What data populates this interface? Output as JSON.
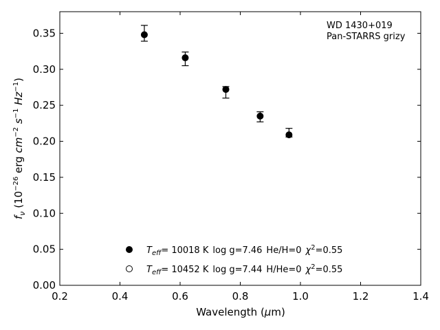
{
  "chart_data": {
    "type": "scatter",
    "title": "",
    "xlabel": "Wavelength (μm)",
    "ylabel": "f_ν (10^-26 erg cm^-2 s^-1 Hz^-1)",
    "xlim": [
      0.2,
      1.4
    ],
    "ylim": [
      0.0,
      0.38
    ],
    "xticks": [
      0.2,
      0.4,
      0.6,
      0.8,
      1.0,
      1.2,
      1.4
    ],
    "yticks": [
      0.0,
      0.05,
      0.1,
      0.15,
      0.2,
      0.25,
      0.3,
      0.35
    ],
    "xtick_labels": [
      "0.2",
      "0.4",
      "0.6",
      "0.8",
      "1.0",
      "1.2",
      "1.4"
    ],
    "ytick_labels": [
      "0.00",
      "0.05",
      "0.10",
      "0.15",
      "0.20",
      "0.25",
      "0.30",
      "0.35"
    ],
    "grid": false,
    "annotation": [
      "WD 1430+019",
      "Pan-STARRS grizy"
    ],
    "observed": {
      "x": [
        0.481,
        0.617,
        0.752,
        0.866,
        0.962
      ],
      "y": [
        0.348,
        0.316,
        0.272,
        0.235,
        0.209
      ],
      "err_low": [
        0.009,
        0.011,
        0.012,
        0.008,
        0.003
      ],
      "err_high": [
        0.013,
        0.008,
        0.004,
        0.006,
        0.009
      ]
    },
    "series": [
      {
        "marker": "filled-circle",
        "x": [
          0.481,
          0.617,
          0.752,
          0.866,
          0.962
        ],
        "y": [
          0.348,
          0.316,
          0.272,
          0.235,
          0.209
        ]
      },
      {
        "marker": "open-circle",
        "x": [
          0.481,
          0.617,
          0.752,
          0.866,
          0.962
        ],
        "y": [
          0.348,
          0.316,
          0.272,
          0.235,
          0.209
        ]
      }
    ],
    "legend_position": "lower-center",
    "legend": [
      {
        "marker": "filled-circle",
        "teff": "= 10018 K",
        "logg": "log g=7.46",
        "comp": "He/H=0",
        "chi2": "=0.55"
      },
      {
        "marker": "open-circle",
        "teff": "= 10452 K",
        "logg": "log g=7.44",
        "comp": "H/He=0",
        "chi2": "=0.55"
      }
    ]
  }
}
